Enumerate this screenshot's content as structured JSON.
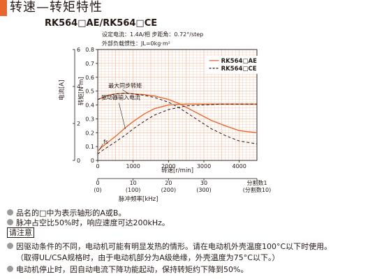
{
  "page": {
    "title": "转速—转矩特性",
    "model_title": "RK564□AE/RK564□CE",
    "conditions": [
      "设定电流：1.4A/相  步距角：0.72°/step",
      "外部负载惯性：JL=0kg·m²"
    ]
  },
  "notes": {
    "line1": "品名的□中为表示轴形的A或B。",
    "line2": "脉冲占空比50%时，响应速度可达200kHz。",
    "caution_label": "请注意",
    "line3": "因驱动条件的不同，电动机可能有明显发热的情形。请在电动机外壳温度100°C以下时使用。",
    "line4": "（取得UL/CSA规格时，由于电动机部分为A级绝缘，外壳温度为75°C以下。）",
    "line5": "电动机停止时，因自动电流下降功能起动，保持转矩约下降到50%。"
  },
  "colors": {
    "accent": "#e8672f",
    "grid": "#f2c1a6",
    "axis": "#231815",
    "bullet": "#9a9a9a"
  },
  "chart_data": {
    "type": "line",
    "xlabel": "转速[r/min]",
    "ylabel_torque": "转矩[N·m]",
    "ylabel_current": "电流[A]",
    "xlim": [
      0,
      4500
    ],
    "x_ticks": [
      0,
      1000,
      2000,
      3000,
      4000
    ],
    "x_tick_labels": [
      "0",
      "1000",
      "2000",
      "3000",
      "4000"
    ],
    "ylim_torque": [
      0,
      0.8
    ],
    "y_ticks_torque": [
      "0",
      "0.1",
      "0.2",
      "0.3",
      "0.4",
      "0.5",
      "0.6",
      "0.7",
      "0.8"
    ],
    "ylim_current": [
      0,
      6
    ],
    "y_ticks_current": [
      "0",
      "2",
      "4",
      "6"
    ],
    "grid": true,
    "legend": {
      "position": "top-right",
      "entries": [
        "RK564□AE",
        "RK564□CE"
      ]
    },
    "annotations": {
      "pullout": "最大同步转矩",
      "drive_current": "驱动器输入电流",
      "fs": "fs"
    },
    "pulse_axis": {
      "label": "脉冲频率[kHz]",
      "ticks": [
        {
          "speed": 0,
          "top": "0",
          "bottom": "(0)"
        },
        {
          "speed": 1000,
          "top": "10",
          "bottom": "(100)"
        },
        {
          "speed": 2000,
          "top": "20",
          "bottom": "(200)"
        },
        {
          "speed": 3000,
          "top": "30",
          "bottom": "(300)"
        },
        {
          "speed": 4500,
          "top": "分割数1",
          "bottom": "(分割数10)"
        }
      ]
    },
    "series": [
      {
        "name": "RK564□AE",
        "kind": "torque",
        "style": "solid",
        "x": [
          0,
          100,
          300,
          500,
          800,
          1000,
          1300,
          1600,
          2000,
          2300,
          2600,
          2900,
          3200,
          3600,
          4000,
          4500
        ],
        "y": [
          0.44,
          0.45,
          0.47,
          0.48,
          0.485,
          0.48,
          0.475,
          0.465,
          0.44,
          0.41,
          0.37,
          0.33,
          0.29,
          0.25,
          0.215,
          0.2
        ]
      },
      {
        "name": "RK564□CE",
        "kind": "torque",
        "style": "dashed",
        "x": [
          0,
          100,
          300,
          500,
          800,
          1000,
          1300,
          1600,
          2000,
          2300,
          2600,
          2900,
          3200,
          3600,
          4000,
          4500
        ],
        "y": [
          0.44,
          0.45,
          0.47,
          0.48,
          0.485,
          0.48,
          0.47,
          0.455,
          0.42,
          0.38,
          0.33,
          0.28,
          0.23,
          0.18,
          0.14,
          0.12
        ]
      },
      {
        "name": "",
        "kind": "current",
        "style": "solid",
        "x": [
          0,
          100,
          300,
          500,
          800,
          1000,
          1300,
          1600,
          2000,
          2500,
          3000,
          3500,
          4000,
          4500
        ],
        "y": [
          0.5,
          0.7,
          1.0,
          1.3,
          1.8,
          2.1,
          2.5,
          2.8,
          3.0,
          3.05,
          3.05,
          3.05,
          3.05,
          3.05
        ]
      },
      {
        "name": "",
        "kind": "current",
        "style": "dashed",
        "x": [
          0,
          100,
          300,
          500,
          800,
          1000,
          1300,
          1600,
          2000,
          2500,
          3000,
          3500,
          4000,
          4500
        ],
        "y": [
          0.35,
          0.5,
          0.75,
          1.0,
          1.4,
          1.7,
          2.1,
          2.45,
          2.75,
          2.95,
          3.0,
          3.05,
          3.05,
          3.05
        ]
      }
    ]
  }
}
